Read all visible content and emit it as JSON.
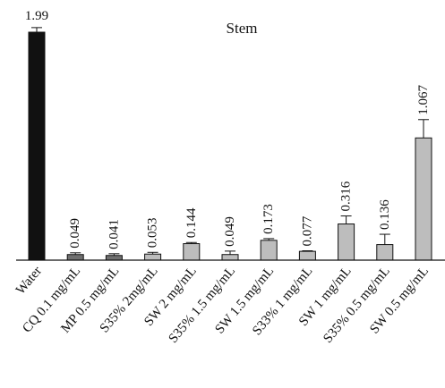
{
  "chart_data": {
    "type": "bar",
    "title": "Stem",
    "xlabel": "",
    "ylabel": "",
    "ylim": [
      0,
      2.0
    ],
    "grid": false,
    "legend": "none",
    "categories": [
      "Water",
      "CQ 0.1 mg/mL",
      "MP 0.5 mg/mL",
      "S35% 2mg/mL",
      "SW 2 mg/mL",
      "S35% 1.5 mg/mL",
      "SW 1.5 mg/mL",
      "S33% 1 mg/mL",
      "SW 1 mg/mL",
      "S35% 0.5 mg/mL",
      "SW 0.5 mg/mL"
    ],
    "values": [
      1.99,
      0.049,
      0.041,
      0.053,
      0.144,
      0.049,
      0.173,
      0.077,
      0.316,
      0.136,
      1.067
    ],
    "data_labels": [
      "1.99",
      "0.049",
      "0.041",
      "0.053",
      "0.144",
      "0.049",
      "0.173",
      "0.077",
      "0.316",
      "0.136",
      "1.067"
    ],
    "error": [
      0.04,
      0.015,
      0.015,
      0.015,
      0.01,
      0.03,
      0.015,
      0.005,
      0.07,
      0.09,
      0.16
    ],
    "colors": [
      "#111111",
      "#6f6f6f",
      "#6f6f6f",
      "#bdbdbd",
      "#bdbdbd",
      "#bdbdbd",
      "#bdbdbd",
      "#bdbdbd",
      "#bdbdbd",
      "#bdbdbd",
      "#bdbdbd"
    ]
  }
}
